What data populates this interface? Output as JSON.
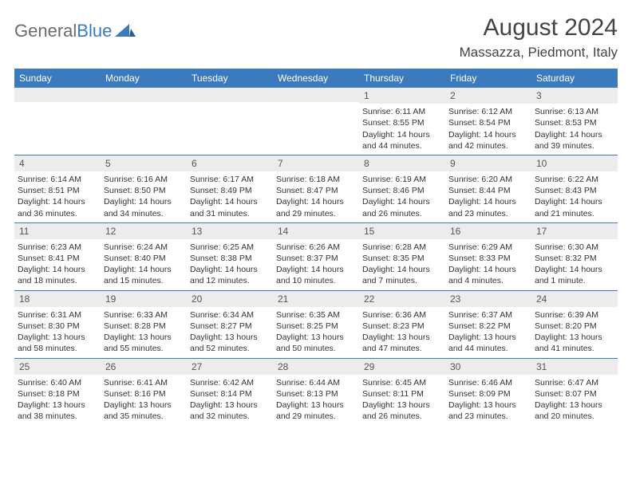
{
  "logo": {
    "text1": "General",
    "text2": "Blue"
  },
  "title": "August 2024",
  "location": "Massazza, Piedmont, Italy",
  "colors": {
    "header_bg": "#3a7abd",
    "header_text": "#ffffff",
    "daynum_bg": "#ececec",
    "border": "#3a7abd"
  },
  "weekdays": [
    "Sunday",
    "Monday",
    "Tuesday",
    "Wednesday",
    "Thursday",
    "Friday",
    "Saturday"
  ],
  "weeks": [
    [
      {
        "n": "",
        "sunrise": "",
        "sunset": "",
        "daylight": ""
      },
      {
        "n": "",
        "sunrise": "",
        "sunset": "",
        "daylight": ""
      },
      {
        "n": "",
        "sunrise": "",
        "sunset": "",
        "daylight": ""
      },
      {
        "n": "",
        "sunrise": "",
        "sunset": "",
        "daylight": ""
      },
      {
        "n": "1",
        "sunrise": "Sunrise: 6:11 AM",
        "sunset": "Sunset: 8:55 PM",
        "daylight": "Daylight: 14 hours and 44 minutes."
      },
      {
        "n": "2",
        "sunrise": "Sunrise: 6:12 AM",
        "sunset": "Sunset: 8:54 PM",
        "daylight": "Daylight: 14 hours and 42 minutes."
      },
      {
        "n": "3",
        "sunrise": "Sunrise: 6:13 AM",
        "sunset": "Sunset: 8:53 PM",
        "daylight": "Daylight: 14 hours and 39 minutes."
      }
    ],
    [
      {
        "n": "4",
        "sunrise": "Sunrise: 6:14 AM",
        "sunset": "Sunset: 8:51 PM",
        "daylight": "Daylight: 14 hours and 36 minutes."
      },
      {
        "n": "5",
        "sunrise": "Sunrise: 6:16 AM",
        "sunset": "Sunset: 8:50 PM",
        "daylight": "Daylight: 14 hours and 34 minutes."
      },
      {
        "n": "6",
        "sunrise": "Sunrise: 6:17 AM",
        "sunset": "Sunset: 8:49 PM",
        "daylight": "Daylight: 14 hours and 31 minutes."
      },
      {
        "n": "7",
        "sunrise": "Sunrise: 6:18 AM",
        "sunset": "Sunset: 8:47 PM",
        "daylight": "Daylight: 14 hours and 29 minutes."
      },
      {
        "n": "8",
        "sunrise": "Sunrise: 6:19 AM",
        "sunset": "Sunset: 8:46 PM",
        "daylight": "Daylight: 14 hours and 26 minutes."
      },
      {
        "n": "9",
        "sunrise": "Sunrise: 6:20 AM",
        "sunset": "Sunset: 8:44 PM",
        "daylight": "Daylight: 14 hours and 23 minutes."
      },
      {
        "n": "10",
        "sunrise": "Sunrise: 6:22 AM",
        "sunset": "Sunset: 8:43 PM",
        "daylight": "Daylight: 14 hours and 21 minutes."
      }
    ],
    [
      {
        "n": "11",
        "sunrise": "Sunrise: 6:23 AM",
        "sunset": "Sunset: 8:41 PM",
        "daylight": "Daylight: 14 hours and 18 minutes."
      },
      {
        "n": "12",
        "sunrise": "Sunrise: 6:24 AM",
        "sunset": "Sunset: 8:40 PM",
        "daylight": "Daylight: 14 hours and 15 minutes."
      },
      {
        "n": "13",
        "sunrise": "Sunrise: 6:25 AM",
        "sunset": "Sunset: 8:38 PM",
        "daylight": "Daylight: 14 hours and 12 minutes."
      },
      {
        "n": "14",
        "sunrise": "Sunrise: 6:26 AM",
        "sunset": "Sunset: 8:37 PM",
        "daylight": "Daylight: 14 hours and 10 minutes."
      },
      {
        "n": "15",
        "sunrise": "Sunrise: 6:28 AM",
        "sunset": "Sunset: 8:35 PM",
        "daylight": "Daylight: 14 hours and 7 minutes."
      },
      {
        "n": "16",
        "sunrise": "Sunrise: 6:29 AM",
        "sunset": "Sunset: 8:33 PM",
        "daylight": "Daylight: 14 hours and 4 minutes."
      },
      {
        "n": "17",
        "sunrise": "Sunrise: 6:30 AM",
        "sunset": "Sunset: 8:32 PM",
        "daylight": "Daylight: 14 hours and 1 minute."
      }
    ],
    [
      {
        "n": "18",
        "sunrise": "Sunrise: 6:31 AM",
        "sunset": "Sunset: 8:30 PM",
        "daylight": "Daylight: 13 hours and 58 minutes."
      },
      {
        "n": "19",
        "sunrise": "Sunrise: 6:33 AM",
        "sunset": "Sunset: 8:28 PM",
        "daylight": "Daylight: 13 hours and 55 minutes."
      },
      {
        "n": "20",
        "sunrise": "Sunrise: 6:34 AM",
        "sunset": "Sunset: 8:27 PM",
        "daylight": "Daylight: 13 hours and 52 minutes."
      },
      {
        "n": "21",
        "sunrise": "Sunrise: 6:35 AM",
        "sunset": "Sunset: 8:25 PM",
        "daylight": "Daylight: 13 hours and 50 minutes."
      },
      {
        "n": "22",
        "sunrise": "Sunrise: 6:36 AM",
        "sunset": "Sunset: 8:23 PM",
        "daylight": "Daylight: 13 hours and 47 minutes."
      },
      {
        "n": "23",
        "sunrise": "Sunrise: 6:37 AM",
        "sunset": "Sunset: 8:22 PM",
        "daylight": "Daylight: 13 hours and 44 minutes."
      },
      {
        "n": "24",
        "sunrise": "Sunrise: 6:39 AM",
        "sunset": "Sunset: 8:20 PM",
        "daylight": "Daylight: 13 hours and 41 minutes."
      }
    ],
    [
      {
        "n": "25",
        "sunrise": "Sunrise: 6:40 AM",
        "sunset": "Sunset: 8:18 PM",
        "daylight": "Daylight: 13 hours and 38 minutes."
      },
      {
        "n": "26",
        "sunrise": "Sunrise: 6:41 AM",
        "sunset": "Sunset: 8:16 PM",
        "daylight": "Daylight: 13 hours and 35 minutes."
      },
      {
        "n": "27",
        "sunrise": "Sunrise: 6:42 AM",
        "sunset": "Sunset: 8:14 PM",
        "daylight": "Daylight: 13 hours and 32 minutes."
      },
      {
        "n": "28",
        "sunrise": "Sunrise: 6:44 AM",
        "sunset": "Sunset: 8:13 PM",
        "daylight": "Daylight: 13 hours and 29 minutes."
      },
      {
        "n": "29",
        "sunrise": "Sunrise: 6:45 AM",
        "sunset": "Sunset: 8:11 PM",
        "daylight": "Daylight: 13 hours and 26 minutes."
      },
      {
        "n": "30",
        "sunrise": "Sunrise: 6:46 AM",
        "sunset": "Sunset: 8:09 PM",
        "daylight": "Daylight: 13 hours and 23 minutes."
      },
      {
        "n": "31",
        "sunrise": "Sunrise: 6:47 AM",
        "sunset": "Sunset: 8:07 PM",
        "daylight": "Daylight: 13 hours and 20 minutes."
      }
    ]
  ]
}
